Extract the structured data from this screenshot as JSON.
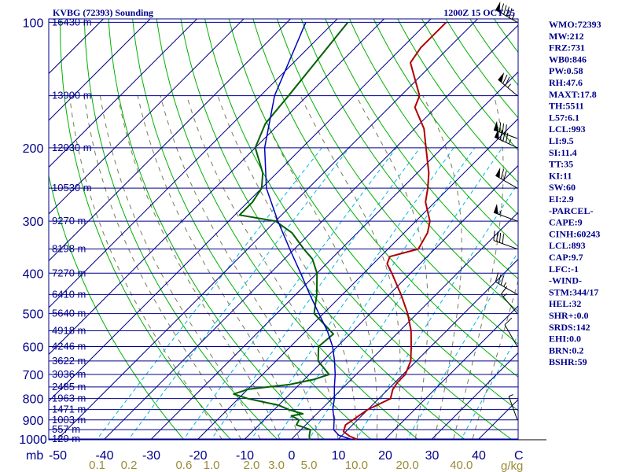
{
  "header": {
    "station_title": "KVBG (72393) Sounding",
    "time_label": "1200Z 15 OCT 25"
  },
  "indices": [
    "WMO:72393",
    "MW:212",
    "FRZ:731",
    "WB0:846",
    "PW:0.58",
    "RH:47.6",
    "MAXT:17.8",
    "TH:5511",
    "L57:6.1",
    "LCL:993",
    "LI:9.5",
    "SI:11.4",
    "TT:35",
    "KI:11",
    "SW:60",
    "EI:2.9",
    "-PARCEL-",
    "CAPE:9",
    "CINH:60243",
    "LCL:893",
    "CAP:9.7",
    "LFC:-1",
    "-WIND-",
    "STM:344/17",
    "HEL:32",
    "SHR+:0.0",
    "SRDS:142",
    "EHI:0.0",
    "BRN:0.2",
    "BSHR:59"
  ],
  "colors": {
    "isobar": "#00008b",
    "isotherm": "#00008b",
    "dry_adiabat": "#00b000",
    "moist_adiabat": "#7a7a5a",
    "mixing_ratio": "#00b8e0",
    "temperature": "#b00000",
    "dewpoint": "#006000",
    "parcel": "#0000c0",
    "text": "#00008b",
    "mixing_label": "#9a8b36"
  },
  "chart_data": {
    "type": "line",
    "title": "KVBG (72393) Sounding",
    "subtitle": "1200Z 15 OCT 25",
    "ylabel": "mb",
    "xlabel": "C",
    "y_scale": "log",
    "ylim": [
      1000,
      100
    ],
    "xlim": [
      -50,
      50
    ],
    "y_ticks": [
      100,
      200,
      300,
      400,
      500,
      600,
      700,
      800,
      900,
      1000
    ],
    "x_ticks": [
      "-50",
      "-40",
      "-30",
      "-20",
      "-10",
      "0",
      "10",
      "20",
      "30",
      "40"
    ],
    "x_unit_label": "C",
    "mixing_ratio_labels": [
      "0.1",
      "0.2",
      "0.6",
      "1.0",
      "2.0",
      "3.0",
      "5.0",
      "10.0",
      "20.0",
      "40.0"
    ],
    "mixing_ratio_unit": "g/kg",
    "height_labels": [
      {
        "p": 100,
        "label": "16430 m"
      },
      {
        "p": 150,
        "label": "13900 m"
      },
      {
        "p": 200,
        "label": "12030 m"
      },
      {
        "p": 250,
        "label": "10530 m"
      },
      {
        "p": 300,
        "label": "9270 m"
      },
      {
        "p": 350,
        "label": "8198 m"
      },
      {
        "p": 400,
        "label": "7270 m"
      },
      {
        "p": 450,
        "label": "6410 m"
      },
      {
        "p": 500,
        "label": "5640 m"
      },
      {
        "p": 550,
        "label": "4918 m"
      },
      {
        "p": 600,
        "label": "4246 m"
      },
      {
        "p": 650,
        "label": "3622 m"
      },
      {
        "p": 700,
        "label": "3036 m"
      },
      {
        "p": 750,
        "label": "2485 m"
      },
      {
        "p": 800,
        "label": "1963 m"
      },
      {
        "p": 850,
        "label": "1471 m"
      },
      {
        "p": 900,
        "label": "1003 m"
      },
      {
        "p": 950,
        "label": "557 m"
      },
      {
        "p": 1000,
        "label": "129 m"
      }
    ],
    "series": [
      {
        "key": "temperature",
        "values": [
          [
            1011,
            13.8
          ],
          [
            1000,
            13.8
          ],
          [
            985,
            11.8
          ],
          [
            960,
            9.5
          ],
          [
            925,
            8.5
          ],
          [
            900,
            9.0
          ],
          [
            850,
            10.0
          ],
          [
            800,
            12.5
          ],
          [
            760,
            11.0
          ],
          [
            730,
            10.5
          ],
          [
            700,
            10.5
          ],
          [
            650,
            8.8
          ],
          [
            600,
            5.8
          ],
          [
            550,
            2.4
          ],
          [
            500,
            -2.0
          ],
          [
            450,
            -7.5
          ],
          [
            400,
            -14.0
          ],
          [
            380,
            -17.0
          ],
          [
            365,
            -18.0
          ],
          [
            350,
            -13.5
          ],
          [
            320,
            -15.0
          ],
          [
            300,
            -17.0
          ],
          [
            270,
            -22.0
          ],
          [
            250,
            -24.5
          ],
          [
            230,
            -27.5
          ],
          [
            200,
            -33.5
          ],
          [
            180,
            -38.0
          ],
          [
            160,
            -44.5
          ],
          [
            150,
            -46.0
          ],
          [
            125,
            -55.0
          ],
          [
            115,
            -56.0
          ],
          [
            100,
            -56.0
          ]
        ]
      },
      {
        "key": "dewpoint",
        "values": [
          [
            1011,
            3.8
          ],
          [
            1000,
            3.8
          ],
          [
            980,
            3.0
          ],
          [
            950,
            2.0
          ],
          [
            925,
            -2.0
          ],
          [
            900,
            -2.5
          ],
          [
            880,
            -5.0
          ],
          [
            870,
            -3.0
          ],
          [
            850,
            -7.0
          ],
          [
            830,
            -10.0
          ],
          [
            800,
            -18.0
          ],
          [
            780,
            -22.0
          ],
          [
            760,
            -20.0
          ],
          [
            740,
            -12.0
          ],
          [
            720,
            -8.0
          ],
          [
            700,
            -5.8
          ],
          [
            650,
            -11.0
          ],
          [
            600,
            -14.0
          ],
          [
            560,
            -13.5
          ],
          [
            500,
            -22.0
          ],
          [
            450,
            -25.5
          ],
          [
            400,
            -30.0
          ],
          [
            370,
            -34.0
          ],
          [
            350,
            -38.0
          ],
          [
            320,
            -44.0
          ],
          [
            300,
            -50.0
          ],
          [
            290,
            -59.0
          ],
          [
            270,
            -59.0
          ],
          [
            250,
            -60.0
          ],
          [
            230,
            -63.0
          ],
          [
            200,
            -70.0
          ],
          [
            175,
            -73.0
          ],
          [
            150,
            -74.0
          ],
          [
            100,
            -77.0
          ]
        ]
      },
      {
        "key": "parcel",
        "values": [
          [
            1011,
            13.8
          ],
          [
            1000,
            12.5
          ],
          [
            980,
            9.3
          ],
          [
            950,
            7.0
          ],
          [
            900,
            5.0
          ],
          [
            850,
            2.5
          ],
          [
            800,
            0.5
          ],
          [
            750,
            -2.0
          ],
          [
            700,
            -4.5
          ],
          [
            650,
            -7.5
          ],
          [
            600,
            -11.0
          ],
          [
            550,
            -15.5
          ],
          [
            500,
            -21.0
          ],
          [
            450,
            -27.0
          ],
          [
            400,
            -33.5
          ],
          [
            350,
            -41.0
          ],
          [
            300,
            -49.5
          ],
          [
            250,
            -59.0
          ],
          [
            200,
            -68.0
          ],
          [
            150,
            -77.0
          ],
          [
            100,
            -86.0
          ]
        ]
      }
    ],
    "wind_barbs": [
      {
        "p": 100,
        "dir": 300,
        "spd": 95
      },
      {
        "p": 150,
        "dir": 310,
        "spd": 75
      },
      {
        "p": 190,
        "dir": 290,
        "spd": 80
      },
      {
        "p": 200,
        "dir": 295,
        "spd": 85
      },
      {
        "p": 250,
        "dir": 300,
        "spd": 70
      },
      {
        "p": 300,
        "dir": 290,
        "spd": 55
      },
      {
        "p": 350,
        "dir": 290,
        "spd": 40
      },
      {
        "p": 450,
        "dir": 300,
        "spd": 35
      },
      {
        "p": 500,
        "dir": 320,
        "spd": 15
      },
      {
        "p": 600,
        "dir": 330,
        "spd": 10
      },
      {
        "p": 900,
        "dir": 340,
        "spd": 5
      }
    ]
  }
}
